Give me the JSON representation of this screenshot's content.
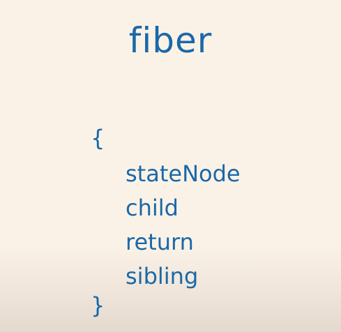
{
  "title": "fiber",
  "open_brace": "{",
  "fields": [
    "stateNode",
    "child",
    "return",
    "sibling"
  ],
  "close_brace": "}",
  "colors": {
    "text": "#1a68a8",
    "background": "#fbf2e7"
  }
}
